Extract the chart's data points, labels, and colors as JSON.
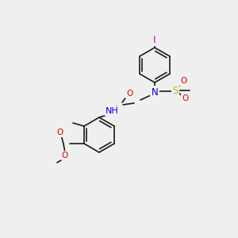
{
  "bg_color": "#efefef",
  "bond_color": "#1a1a1a",
  "atom_colors": {
    "N": "#0000dd",
    "O": "#dd0000",
    "S": "#bbbb00",
    "I": "#cc00cc",
    "H_label": "#008888",
    "C": "#1a1a1a"
  },
  "font_size": 7.5,
  "lw": 1.2
}
